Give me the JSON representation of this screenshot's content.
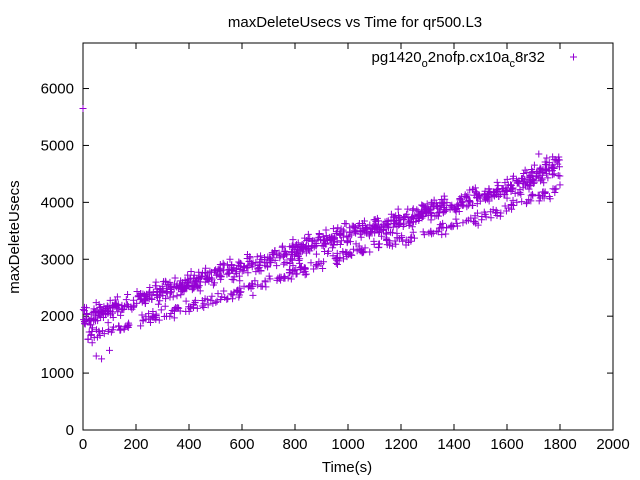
{
  "chart_data": {
    "type": "scatter",
    "title": "maxDeleteUsecs vs Time for qr500.L3",
    "xlabel": "Time(s)",
    "ylabel": "maxDeleteUsecs",
    "xlim": [
      0,
      2000
    ],
    "ylim": [
      0,
      6800
    ],
    "xticks": [
      0,
      200,
      400,
      600,
      800,
      1000,
      1200,
      1400,
      1600,
      1800,
      2000
    ],
    "yticks": [
      0,
      1000,
      2000,
      3000,
      4000,
      5000,
      6000
    ],
    "grid": false,
    "legend_position": "top-right",
    "marker": "+",
    "series": [
      {
        "name": "pg1420o2nofp.cx10ac8r32",
        "name_parts": {
          "a": "pg1420",
          "b": "o",
          "c": "2nofp.cx10a",
          "d": "c",
          "e": "8r32"
        },
        "color": "#9400d3",
        "trend_upper": {
          "x": [
            0,
            200,
            400,
            600,
            800,
            1000,
            1200,
            1400,
            1600,
            1800
          ],
          "y": [
            1950,
            2280,
            2580,
            2850,
            3150,
            3450,
            3700,
            3980,
            4250,
            4650
          ]
        },
        "trend_lower": {
          "x": [
            0,
            200,
            400,
            600,
            800,
            1000,
            1200,
            1400,
            1600,
            1800
          ],
          "y": [
            1630,
            1880,
            2180,
            2450,
            2780,
            3100,
            3350,
            3600,
            3880,
            4250
          ]
        },
        "outliers": [
          {
            "x": 0,
            "y": 5650
          },
          {
            "x": 50,
            "y": 1300
          },
          {
            "x": 70,
            "y": 1250
          },
          {
            "x": 100,
            "y": 1400
          },
          {
            "x": 30,
            "y": 1850
          },
          {
            "x": 1720,
            "y": 4850
          },
          {
            "x": 1750,
            "y": 4780
          }
        ]
      }
    ]
  }
}
